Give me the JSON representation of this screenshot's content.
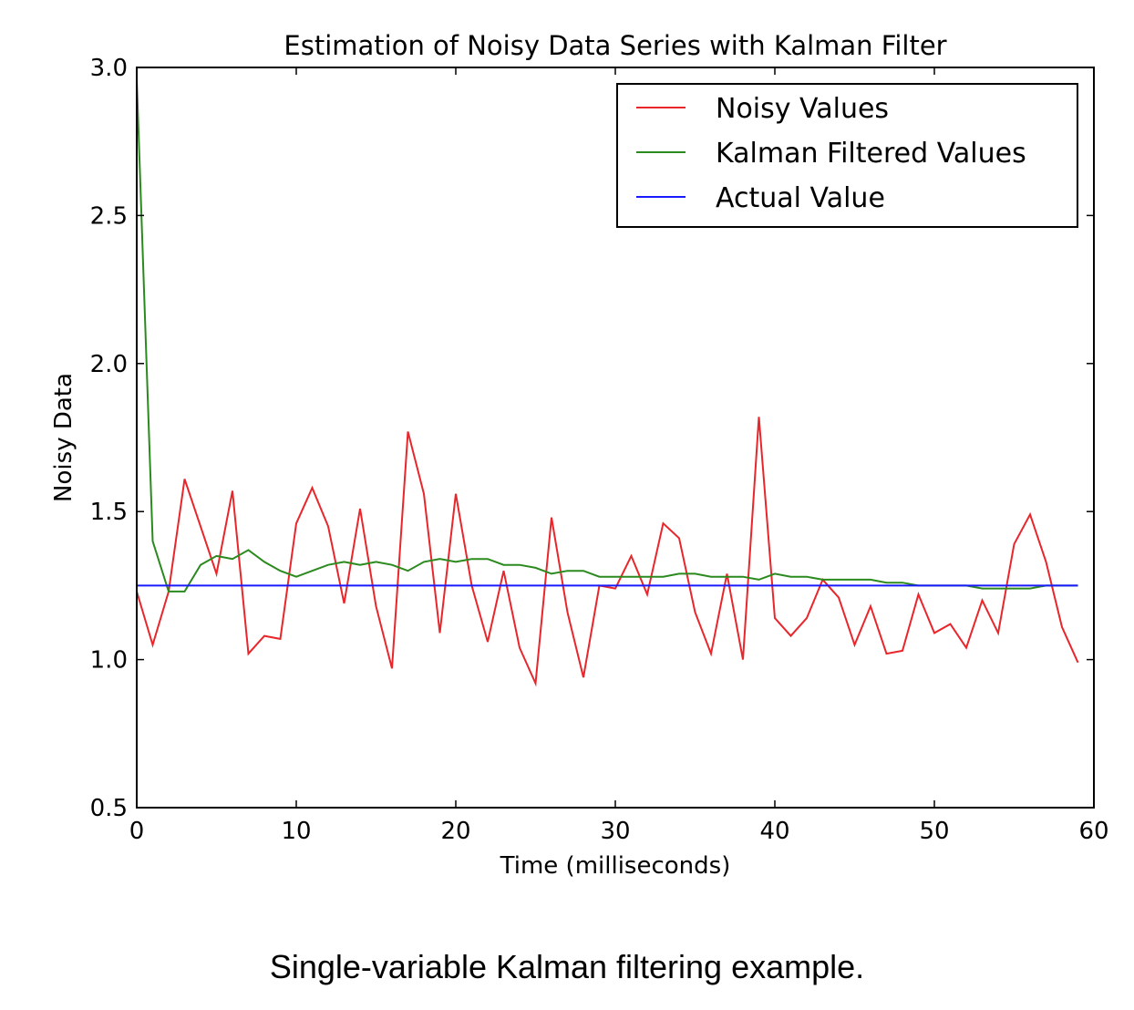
{
  "caption": "Single-variable Kalman filtering example.",
  "chart_data": {
    "type": "line",
    "title": "Estimation of Noisy Data Series with Kalman Filter",
    "xlabel": "Time (milliseconds)",
    "ylabel": "Noisy Data",
    "xlim": [
      0,
      60
    ],
    "ylim": [
      0.5,
      3.0
    ],
    "xticks": [
      "0",
      "10",
      "20",
      "30",
      "40",
      "50",
      "60"
    ],
    "yticks": [
      "0.5",
      "1.0",
      "1.5",
      "2.0",
      "2.5",
      "3.0"
    ],
    "grid": false,
    "legend_position": "top-right",
    "x": [
      0,
      1,
      2,
      3,
      4,
      5,
      6,
      7,
      8,
      9,
      10,
      11,
      12,
      13,
      14,
      15,
      16,
      17,
      18,
      19,
      20,
      21,
      22,
      23,
      24,
      25,
      26,
      27,
      28,
      29,
      30,
      31,
      32,
      33,
      34,
      35,
      36,
      37,
      38,
      39,
      40,
      41,
      42,
      43,
      44,
      45,
      46,
      47,
      48,
      49,
      50,
      51,
      52,
      53,
      54,
      55,
      56,
      57,
      58,
      59
    ],
    "series": [
      {
        "name": "Noisy Values",
        "color": "#e8262b",
        "values": [
          1.23,
          1.05,
          1.23,
          1.61,
          1.45,
          1.29,
          1.57,
          1.02,
          1.08,
          1.07,
          1.46,
          1.58,
          1.45,
          1.19,
          1.51,
          1.18,
          0.97,
          1.77,
          1.56,
          1.09,
          1.56,
          1.25,
          1.06,
          1.3,
          1.04,
          0.92,
          1.48,
          1.16,
          0.94,
          1.25,
          1.24,
          1.35,
          1.22,
          1.46,
          1.41,
          1.16,
          1.02,
          1.29,
          1.0,
          1.82,
          1.14,
          1.08,
          1.14,
          1.27,
          1.21,
          1.05,
          1.18,
          1.02,
          1.03,
          1.22,
          1.09,
          1.12,
          1.04,
          1.2,
          1.09,
          1.39,
          1.49,
          1.33,
          1.11,
          0.99
        ]
      },
      {
        "name": "Kalman Filtered Values",
        "color": "#2b8a1e",
        "values": [
          2.96,
          1.4,
          1.23,
          1.23,
          1.32,
          1.35,
          1.34,
          1.37,
          1.33,
          1.3,
          1.28,
          1.3,
          1.32,
          1.33,
          1.32,
          1.33,
          1.32,
          1.3,
          1.33,
          1.34,
          1.33,
          1.34,
          1.34,
          1.32,
          1.32,
          1.31,
          1.29,
          1.3,
          1.3,
          1.28,
          1.28,
          1.28,
          1.28,
          1.28,
          1.29,
          1.29,
          1.28,
          1.28,
          1.28,
          1.27,
          1.29,
          1.28,
          1.28,
          1.27,
          1.27,
          1.27,
          1.27,
          1.26,
          1.26,
          1.25,
          1.25,
          1.25,
          1.25,
          1.24,
          1.24,
          1.24,
          1.24,
          1.25,
          1.25,
          1.25
        ]
      },
      {
        "name": "Actual Value",
        "color": "#1a1aff",
        "values": [
          1.25,
          1.25,
          1.25,
          1.25,
          1.25,
          1.25,
          1.25,
          1.25,
          1.25,
          1.25,
          1.25,
          1.25,
          1.25,
          1.25,
          1.25,
          1.25,
          1.25,
          1.25,
          1.25,
          1.25,
          1.25,
          1.25,
          1.25,
          1.25,
          1.25,
          1.25,
          1.25,
          1.25,
          1.25,
          1.25,
          1.25,
          1.25,
          1.25,
          1.25,
          1.25,
          1.25,
          1.25,
          1.25,
          1.25,
          1.25,
          1.25,
          1.25,
          1.25,
          1.25,
          1.25,
          1.25,
          1.25,
          1.25,
          1.25,
          1.25,
          1.25,
          1.25,
          1.25,
          1.25,
          1.25,
          1.25,
          1.25,
          1.25,
          1.25,
          1.25
        ]
      }
    ]
  }
}
